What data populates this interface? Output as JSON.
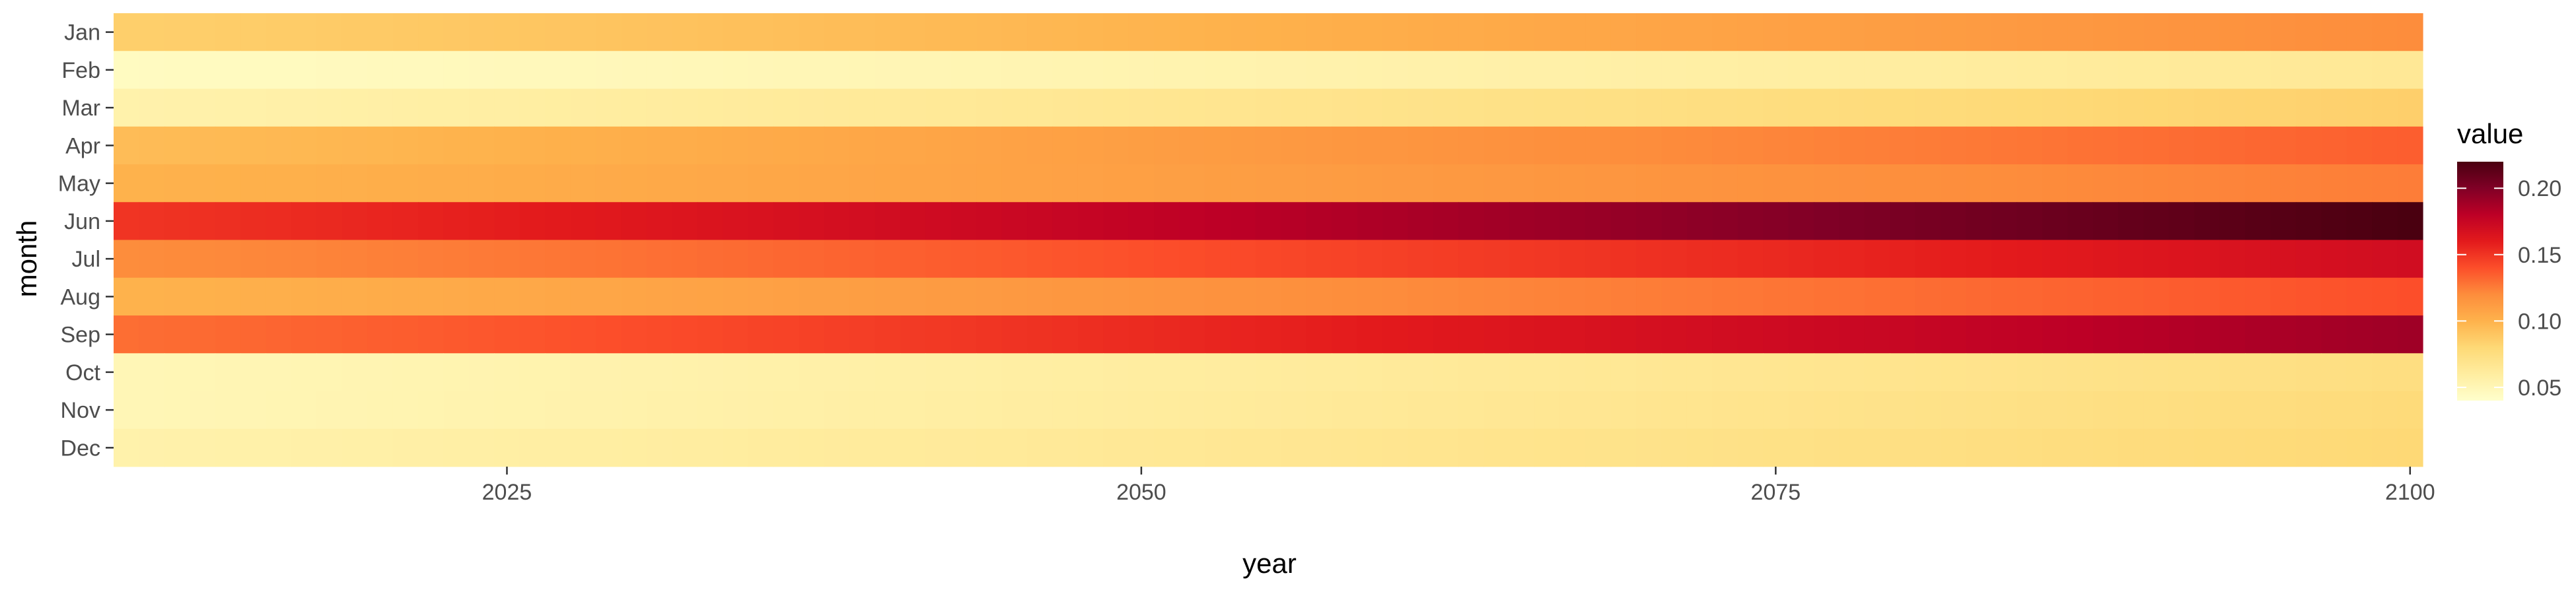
{
  "chart_data": {
    "type": "heatmap",
    "xlabel": "year",
    "ylabel": "month",
    "x_start": 2010,
    "x_end": 2100,
    "x_ticks": [
      2025,
      2050,
      2075,
      2100
    ],
    "x_tick_labels": [
      "2025",
      "2050",
      "2075",
      "2100"
    ],
    "categories": [
      "Jan",
      "Feb",
      "Mar",
      "Apr",
      "May",
      "Jun",
      "Jul",
      "Aug",
      "Sep",
      "Oct",
      "Nov",
      "Dec"
    ],
    "value_range_by_month": {
      "Jan": [
        0.085,
        0.12
      ],
      "Feb": [
        0.045,
        0.065
      ],
      "Mar": [
        0.055,
        0.085
      ],
      "Apr": [
        0.095,
        0.135
      ],
      "May": [
        0.1,
        0.125
      ],
      "Jun": [
        0.15,
        0.22
      ],
      "Jul": [
        0.12,
        0.17
      ],
      "Aug": [
        0.1,
        0.14
      ],
      "Sep": [
        0.13,
        0.19
      ],
      "Oct": [
        0.05,
        0.075
      ],
      "Nov": [
        0.05,
        0.078
      ],
      "Dec": [
        0.055,
        0.08
      ]
    },
    "legend": {
      "title": "value",
      "position": "right",
      "range": [
        0.04,
        0.22
      ],
      "ticks": [
        0.05,
        0.1,
        0.15,
        0.2
      ],
      "tick_labels": [
        "0.05",
        "0.10",
        "0.15",
        "0.20"
      ]
    },
    "colors": {
      "palette": [
        "#ffffcc",
        "#ffeda0",
        "#fed976",
        "#feb24c",
        "#fd8d3c",
        "#fc4e2a",
        "#e31a1c",
        "#bd0026",
        "#800026",
        "#4a0010"
      ],
      "axis_text": "#4d4d4d",
      "tick_mark": "#333333"
    }
  }
}
